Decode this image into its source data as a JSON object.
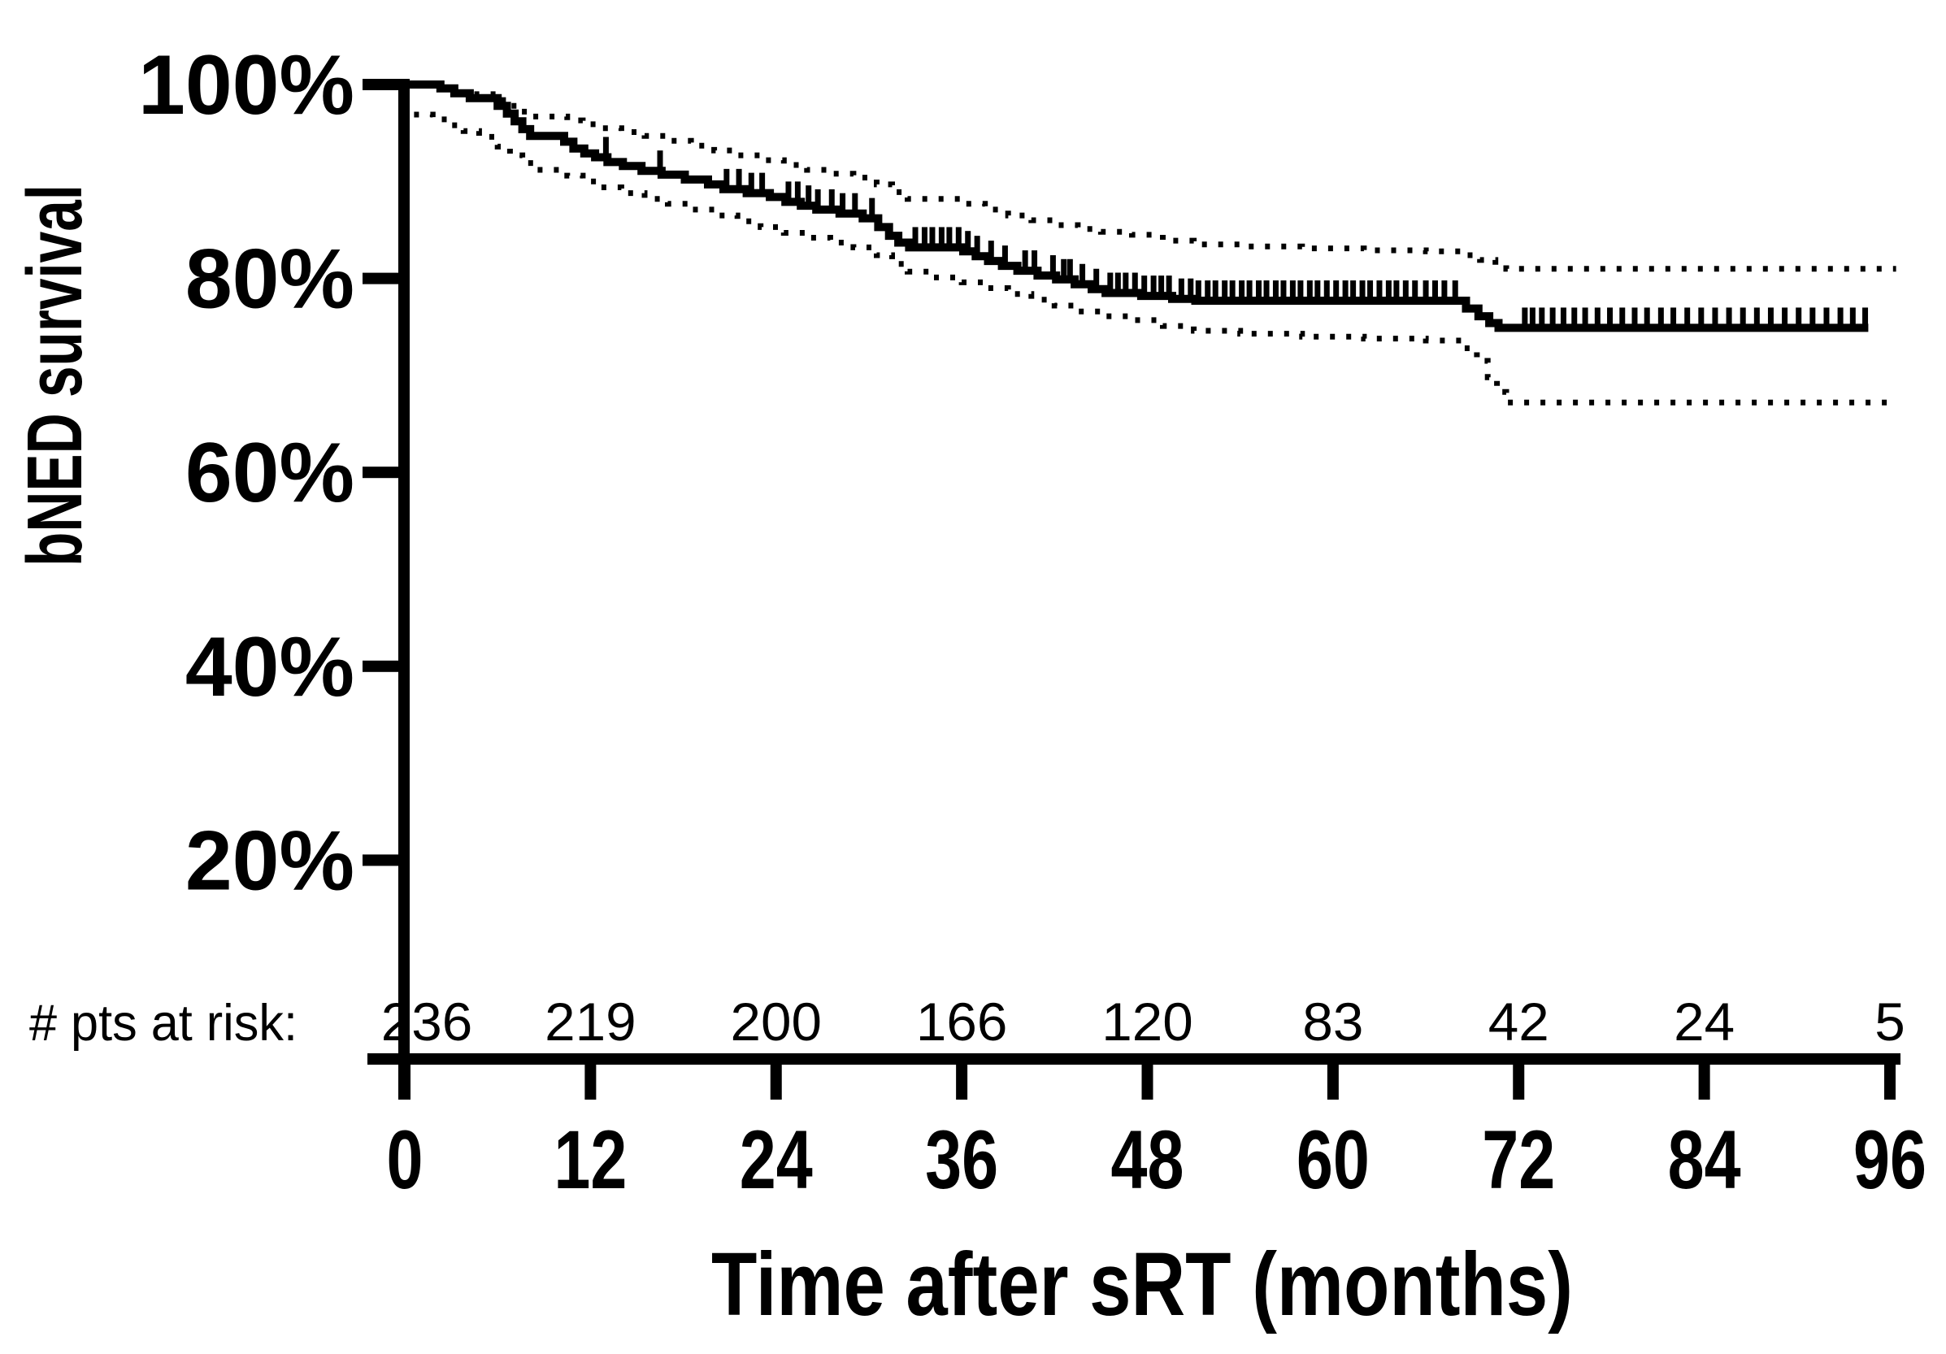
{
  "figure": {
    "background_color": "#ffffff",
    "ink_color": "#000000",
    "description": "Kaplan-Meier curve of biochemical no-evidence-of-disease (bNED) survival after salvage radiotherapy with dotted 95% confidence band, censor tick marks and patients-at-risk table"
  },
  "chart_data": {
    "type": "line",
    "subtype": "kaplan-meier-step",
    "title": "",
    "xlabel": "Time after sRT (months)",
    "ylabel": "bNED survival",
    "xlim": [
      0,
      96
    ],
    "ylim": [
      0,
      100
    ],
    "grid": false,
    "legend": "none",
    "x_ticks": [
      0,
      12,
      24,
      36,
      48,
      60,
      72,
      84,
      96
    ],
    "y_ticks": [
      {
        "v": 100,
        "label": "100%"
      },
      {
        "v": 80,
        "label": "80%"
      },
      {
        "v": 60,
        "label": "60%"
      },
      {
        "v": 40,
        "label": "40%"
      },
      {
        "v": 20,
        "label": "20%"
      }
    ],
    "risk_table": {
      "label": "# pts at risk:",
      "times": [
        0,
        12,
        24,
        36,
        48,
        60,
        72,
        84,
        96
      ],
      "counts": [
        236,
        219,
        200,
        166,
        120,
        83,
        42,
        24,
        5
      ]
    },
    "series": [
      {
        "name": "bNED survival (KM estimate)",
        "style": "solid",
        "line_width": 10,
        "t_end": 94.6,
        "points": [
          [
            0,
            100
          ],
          [
            2.3,
            99.6
          ],
          [
            3.2,
            99.1
          ],
          [
            4.2,
            98.6
          ],
          [
            6,
            97.8
          ],
          [
            6.6,
            97
          ],
          [
            7.1,
            96.2
          ],
          [
            7.6,
            95.4
          ],
          [
            8.1,
            94.7
          ],
          [
            10.3,
            94.1
          ],
          [
            10.9,
            93.4
          ],
          [
            11.6,
            92.9
          ],
          [
            12.3,
            92.5
          ],
          [
            13.1,
            92
          ],
          [
            14.1,
            91.6
          ],
          [
            15.3,
            91.1
          ],
          [
            16.6,
            90.7
          ],
          [
            18.1,
            90.2
          ],
          [
            19.6,
            89.7
          ],
          [
            20.6,
            89.2
          ],
          [
            22.1,
            88.8
          ],
          [
            23.6,
            88.4
          ],
          [
            24.6,
            87.9
          ],
          [
            25.6,
            87.5
          ],
          [
            26.6,
            87.1
          ],
          [
            28.1,
            86.7
          ],
          [
            29.6,
            86.2
          ],
          [
            30.6,
            85.3
          ],
          [
            31.3,
            84.4
          ],
          [
            31.9,
            83.7
          ],
          [
            32.6,
            83.2
          ],
          [
            36.1,
            82.8
          ],
          [
            36.9,
            82.3
          ],
          [
            37.7,
            81.8
          ],
          [
            38.6,
            81.3
          ],
          [
            39.6,
            80.8
          ],
          [
            40.9,
            80.3
          ],
          [
            42.1,
            79.9
          ],
          [
            43.3,
            79.4
          ],
          [
            44.4,
            78.9
          ],
          [
            45.3,
            78.5
          ],
          [
            47.6,
            78.2
          ],
          [
            49.6,
            77.9
          ],
          [
            51.1,
            77.7
          ],
          [
            68.6,
            76.9
          ],
          [
            69.4,
            76.1
          ],
          [
            70.1,
            75.4
          ],
          [
            70.7,
            74.9
          ]
        ]
      },
      {
        "name": "95% CI upper",
        "style": "dotted",
        "line_width": 7,
        "t_end": 96.4,
        "points": [
          [
            4.5,
            99
          ],
          [
            6,
            98.4
          ],
          [
            6.8,
            97.8
          ],
          [
            7.5,
            97.2
          ],
          [
            8.2,
            96.7
          ],
          [
            10.5,
            96.3
          ],
          [
            11.5,
            95.9
          ],
          [
            12.5,
            95.5
          ],
          [
            14,
            95.1
          ],
          [
            15.5,
            94.7
          ],
          [
            17,
            94.2
          ],
          [
            18.5,
            93.7
          ],
          [
            20,
            93.2
          ],
          [
            21.5,
            92.7
          ],
          [
            23,
            92.2
          ],
          [
            24.5,
            91.7
          ],
          [
            26,
            91.2
          ],
          [
            27.5,
            90.8
          ],
          [
            29,
            90.4
          ],
          [
            30.5,
            89.7
          ],
          [
            31.5,
            88.9
          ],
          [
            32.5,
            88.2
          ],
          [
            36,
            87.7
          ],
          [
            37.5,
            87.1
          ],
          [
            39,
            86.5
          ],
          [
            40.5,
            86
          ],
          [
            42,
            85.5
          ],
          [
            43.5,
            85.1
          ],
          [
            45,
            84.8
          ],
          [
            47,
            84.5
          ],
          [
            49,
            83.9
          ],
          [
            51,
            83.5
          ],
          [
            54,
            83.3
          ],
          [
            58,
            83.1
          ],
          [
            62,
            82.9
          ],
          [
            66,
            82.8
          ],
          [
            68.5,
            82.4
          ],
          [
            69.5,
            81.9
          ],
          [
            70.5,
            81.4
          ],
          [
            71.2,
            81
          ]
        ]
      },
      {
        "name": "95% CI lower",
        "style": "dotted",
        "line_width": 7,
        "t_end": 96.4,
        "points": [
          [
            0.6,
            96.9
          ],
          [
            1.8,
            96.4
          ],
          [
            2.8,
            95.8
          ],
          [
            3.8,
            95.2
          ],
          [
            4.8,
            94.6
          ],
          [
            6,
            93.6
          ],
          [
            6.8,
            92.7
          ],
          [
            7.6,
            91.9
          ],
          [
            8.4,
            91.2
          ],
          [
            10.5,
            90.6
          ],
          [
            11.5,
            90
          ],
          [
            12.5,
            89.4
          ],
          [
            14,
            88.8
          ],
          [
            15.5,
            88.2
          ],
          [
            17,
            87.7
          ],
          [
            18.5,
            87.1
          ],
          [
            20,
            86.5
          ],
          [
            21.5,
            85.9
          ],
          [
            23,
            85.3
          ],
          [
            24.5,
            84.7
          ],
          [
            26,
            84.2
          ],
          [
            27.5,
            83.7
          ],
          [
            29,
            83.2
          ],
          [
            30.5,
            82.4
          ],
          [
            31.5,
            81.5
          ],
          [
            32.5,
            80.7
          ],
          [
            34,
            80.1
          ],
          [
            36,
            79.6
          ],
          [
            37.5,
            79
          ],
          [
            39,
            78.4
          ],
          [
            40.5,
            77.8
          ],
          [
            42,
            77.2
          ],
          [
            43.5,
            76.6
          ],
          [
            45,
            76.1
          ],
          [
            47,
            75.7
          ],
          [
            49,
            75.1
          ],
          [
            51,
            74.6
          ],
          [
            54,
            74.3
          ],
          [
            58,
            74
          ],
          [
            62,
            73.8
          ],
          [
            66,
            73.6
          ],
          [
            68.5,
            72.8
          ],
          [
            69.3,
            71.5
          ],
          [
            70,
            69.8
          ],
          [
            70.6,
            68.3
          ],
          [
            71.2,
            67.2
          ]
        ]
      }
    ],
    "censor_times": [
      13,
      16.5,
      20.8,
      21.6,
      22.4,
      23.1,
      24.8,
      25.4,
      26.1,
      26.7,
      27.6,
      28.3,
      29.1,
      30.2,
      33,
      33.6,
      34.1,
      34.7,
      35.2,
      35.8,
      36.4,
      37,
      37.9,
      38.8,
      40.1,
      40.7,
      41.9,
      42.6,
      43,
      43.8,
      44.7,
      45.6,
      46.1,
      46.6,
      47.2,
      47.8,
      48.4,
      48.9,
      49.4,
      50.2,
      50.8,
      51.3,
      51.9,
      52.4,
      53,
      53.5,
      54.1,
      54.6,
      55.2,
      55.7,
      56.3,
      56.8,
      57.4,
      57.9,
      58.5,
      59,
      59.6,
      60.2,
      60.8,
      61.3,
      61.9,
      62.4,
      63,
      63.6,
      64.1,
      64.7,
      65.3,
      66,
      66.6,
      67.2,
      67.9,
      72.4,
      72.9,
      73.5,
      74.2,
      74.9,
      75.6,
      76.3,
      77.1,
      77.9,
      78.7,
      79.5,
      80.3,
      81.2,
      82,
      82.9,
      83.8,
      84.7,
      85.6,
      86.5,
      87.4,
      88.3,
      89.2,
      90.1,
      91,
      91.9,
      92.8,
      93.6,
      94.4
    ]
  }
}
